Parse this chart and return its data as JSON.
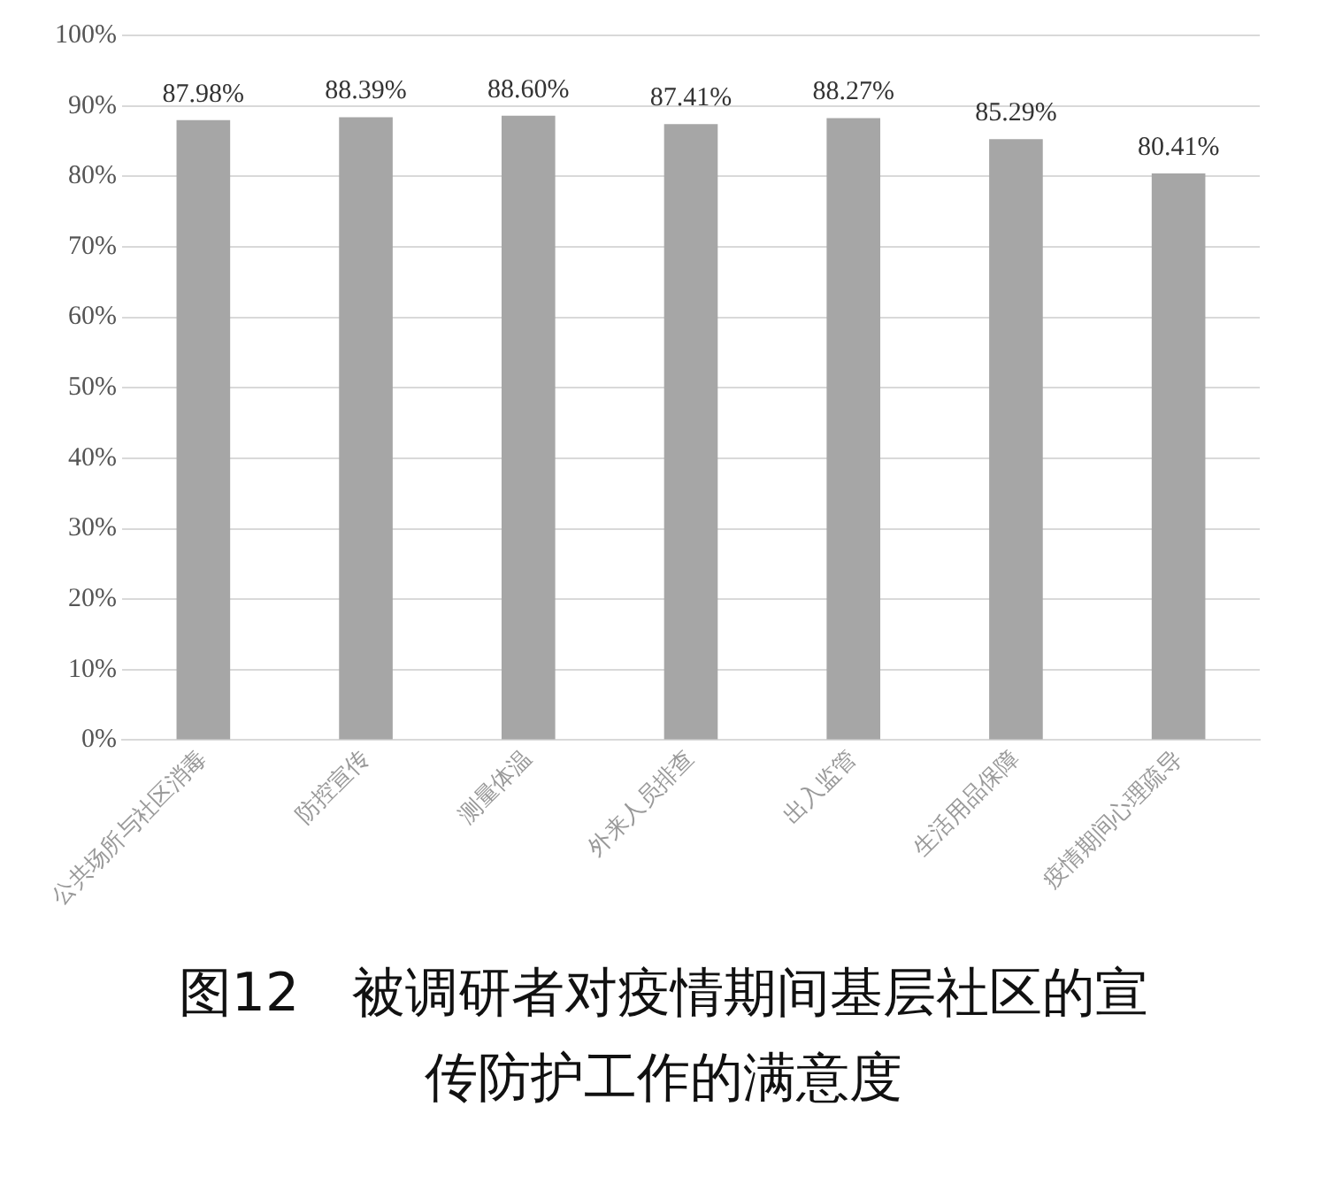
{
  "chart_data": {
    "type": "bar",
    "title": "图12　被调研者对疫情期间基层社区的宣传防护工作的满意度",
    "categories": [
      "公共场所与社区消毒",
      "防控宣传",
      "测量体温",
      "外来人员排查",
      "出入监管",
      "生活用品保障",
      "疫情期间心理疏导"
    ],
    "values": [
      87.98,
      88.39,
      88.6,
      87.41,
      88.27,
      85.29,
      80.41
    ],
    "value_labels": [
      "87.98%",
      "88.39%",
      "88.60%",
      "87.41%",
      "88.27%",
      "85.29%",
      "80.41%"
    ],
    "color": "#a6a6a6",
    "ylim": [
      0,
      100
    ],
    "yticks": [
      {
        "value": 0,
        "label": "0%"
      },
      {
        "value": 10,
        "label": "10%"
      },
      {
        "value": 20,
        "label": "20%"
      },
      {
        "value": 30,
        "label": "30%"
      },
      {
        "value": 40,
        "label": "40%"
      },
      {
        "value": 50,
        "label": "50%"
      },
      {
        "value": 60,
        "label": "60%"
      },
      {
        "value": 70,
        "label": "70%"
      },
      {
        "value": 80,
        "label": "80%"
      },
      {
        "value": 90,
        "label": "90%"
      },
      {
        "value": 100,
        "label": "100%"
      }
    ],
    "grid": "y"
  }
}
